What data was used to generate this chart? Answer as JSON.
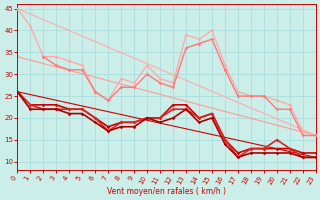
{
  "bg_color": "#cceee8",
  "grid_color": "#aadddd",
  "xlabel": "Vent moyen/en rafales ( km/h )",
  "xlabel_color": "#cc0000",
  "tick_color": "#cc0000",
  "xmin": 0,
  "xmax": 23,
  "ymin": 8,
  "ymax": 46,
  "yticks": [
    10,
    15,
    20,
    25,
    30,
    35,
    40,
    45
  ],
  "xticks": [
    0,
    1,
    2,
    3,
    4,
    5,
    6,
    7,
    8,
    9,
    10,
    11,
    12,
    13,
    14,
    15,
    16,
    17,
    18,
    19,
    20,
    21,
    22,
    23
  ],
  "series": [
    {
      "name": "light_pink_line1",
      "x": [
        0,
        1,
        2,
        3,
        4,
        5,
        6,
        7,
        8,
        9,
        10,
        11,
        12,
        13,
        14,
        15,
        16,
        17,
        18,
        19,
        20,
        21,
        22,
        23
      ],
      "y": [
        45,
        41,
        34,
        34,
        33,
        32,
        26,
        24,
        29,
        28,
        32,
        29,
        28,
        39,
        38,
        40,
        32,
        26,
        25,
        25,
        24,
        23,
        17,
        16
      ],
      "color": "#ffaaaa",
      "lw": 1.0,
      "marker": "D",
      "ms": 1.8
    },
    {
      "name": "medium_pink_line",
      "x": [
        2,
        3,
        4,
        5,
        6,
        7,
        8,
        9,
        10,
        11,
        12,
        13,
        14,
        15,
        16,
        17,
        18,
        19,
        20,
        21,
        22,
        23
      ],
      "y": [
        34,
        32,
        31,
        31,
        26,
        24,
        27,
        27,
        30,
        28,
        27,
        36,
        37,
        38,
        31,
        25,
        25,
        25,
        22,
        22,
        16,
        16
      ],
      "color": "#ff7777",
      "lw": 1.0,
      "marker": "D",
      "ms": 1.8
    },
    {
      "name": "red_line1",
      "x": [
        0,
        1,
        2,
        3,
        4,
        5,
        6,
        7,
        8,
        9,
        10,
        11,
        12,
        13,
        14,
        15,
        16,
        17,
        18,
        19,
        20,
        21,
        22,
        23
      ],
      "y": [
        26,
        23,
        23,
        23,
        22,
        22,
        20,
        18,
        19,
        19,
        20,
        20,
        23,
        23,
        20,
        21,
        15,
        12,
        13,
        13,
        13,
        13,
        12,
        12
      ],
      "color": "#cc0000",
      "lw": 1.2,
      "marker": "D",
      "ms": 1.8
    },
    {
      "name": "red_line2",
      "x": [
        0,
        1,
        2,
        3,
        4,
        5,
        6,
        7,
        8,
        9,
        10,
        11,
        12,
        13,
        14,
        15,
        16,
        17,
        18,
        19,
        20,
        21,
        22,
        23
      ],
      "y": [
        26,
        23,
        22,
        22,
        22,
        22,
        20,
        17,
        19,
        19,
        20,
        20,
        22,
        22,
        20,
        21,
        15,
        11,
        13,
        13,
        15,
        13,
        11,
        11
      ],
      "color": "#dd2222",
      "lw": 1.2,
      "marker": "D",
      "ms": 1.8
    },
    {
      "name": "red_line3",
      "x": [
        0,
        1,
        2,
        3,
        4,
        5,
        6,
        7,
        8,
        9,
        10,
        11,
        12,
        13,
        14,
        15,
        16,
        17,
        18,
        19,
        20,
        21,
        22,
        23
      ],
      "y": [
        26,
        22,
        22,
        22,
        21,
        21,
        19,
        17,
        18,
        18,
        20,
        19,
        20,
        22,
        19,
        20,
        14,
        11,
        12,
        12,
        12,
        12,
        11,
        11
      ],
      "color": "#aa0000",
      "lw": 1.2,
      "marker": "D",
      "ms": 1.8
    },
    {
      "name": "trend_red",
      "x": [
        0,
        23
      ],
      "y": [
        26,
        11
      ],
      "color": "#cc0000",
      "lw": 0.8,
      "marker": null,
      "ms": 0,
      "linestyle": "-"
    },
    {
      "name": "trend_pink_upper",
      "x": [
        0,
        23
      ],
      "y": [
        45,
        16
      ],
      "color": "#ffaaaa",
      "lw": 0.8,
      "marker": null,
      "ms": 0,
      "linestyle": "-"
    },
    {
      "name": "trend_pink_lower",
      "x": [
        0,
        23
      ],
      "y": [
        34,
        16
      ],
      "color": "#ff9999",
      "lw": 0.8,
      "marker": null,
      "ms": 0,
      "linestyle": "-"
    }
  ]
}
